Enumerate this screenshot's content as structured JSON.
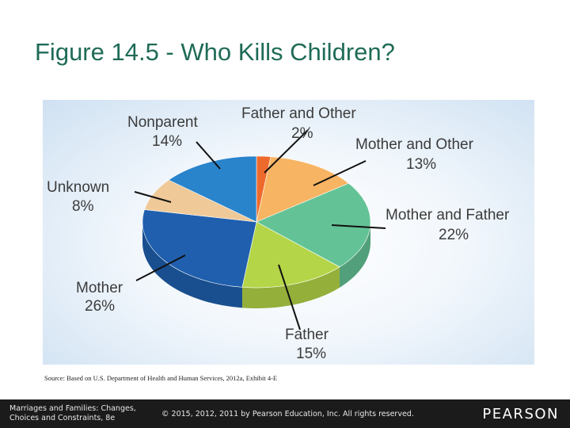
{
  "slide": {
    "title": "Figure 14.5 - Who Kills Children?",
    "source": "Source: Based on U.S. Department of Health and Human Services, 2012a, Exhibit 4-E"
  },
  "footer": {
    "book_line1": "Marriages and Families: Changes,",
    "book_line2": "Choices and Constraints, 8e",
    "copyright": "© 2015, 2012, 2011 by Pearson Education, Inc. All rights reserved.",
    "logo": "PEARSON"
  },
  "colors": {
    "title": "#1f6b57",
    "footer_bg": "#1b1b1b"
  },
  "chart_data": {
    "type": "pie",
    "style": "3d",
    "slices": [
      {
        "label": "Father and Other",
        "value": 2,
        "value_text": "2%",
        "color": "#ee6a2c"
      },
      {
        "label": "Mother and Other",
        "value": 13,
        "value_text": "13%",
        "color": "#f7b462"
      },
      {
        "label": "Mother and Father",
        "value": 22,
        "value_text": "22%",
        "color": "#63c396"
      },
      {
        "label": "Father",
        "value": 15,
        "value_text": "15%",
        "color": "#b4d547"
      },
      {
        "label": "Mother",
        "value": 26,
        "value_text": "26%",
        "color": "#1f5fae"
      },
      {
        "label": "Unknown",
        "value": 8,
        "value_text": "8%",
        "color": "#efc998"
      },
      {
        "label": "Nonparent",
        "value": 14,
        "value_text": "14%",
        "color": "#2a84cc"
      }
    ]
  }
}
